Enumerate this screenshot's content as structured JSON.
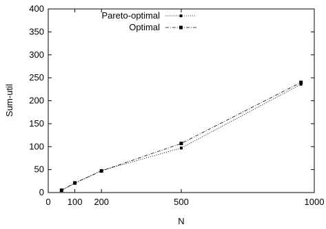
{
  "chart_data": {
    "type": "line",
    "xlabel": "N",
    "ylabel": "Sum-util",
    "xlim": [
      0,
      1000
    ],
    "ylim": [
      0,
      400
    ],
    "x_ticks": [
      0,
      100,
      200,
      500,
      1000
    ],
    "y_ticks": [
      0,
      50,
      100,
      150,
      200,
      250,
      300,
      350,
      400
    ],
    "grid": false,
    "legend_position": "top-left",
    "series": [
      {
        "name": "Pareto-optimal",
        "style": "dotted",
        "x": [
          50,
          100,
          200,
          500,
          950
        ],
        "y": [
          5,
          20,
          48,
          97,
          236
        ]
      },
      {
        "name": "Optimal",
        "style": "dash-dot",
        "x": [
          50,
          100,
          200,
          500,
          950
        ],
        "y": [
          5,
          21,
          47,
          107,
          240
        ]
      }
    ]
  }
}
